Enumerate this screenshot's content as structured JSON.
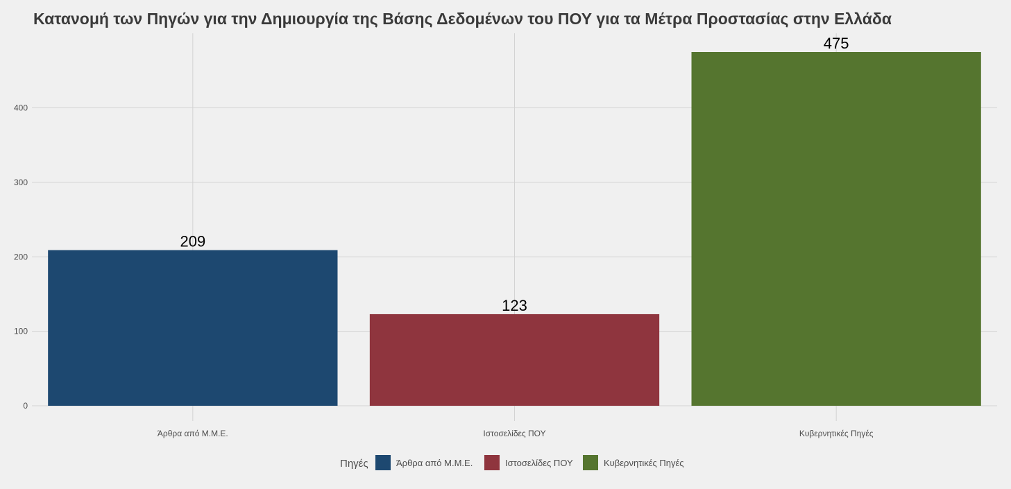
{
  "chart_data": {
    "type": "bar",
    "title": "Κατανομή των Πηγών για την Δημιουργία της Βάσης Δεδομένων του ΠΟΥ για τα Μέτρα Προστασίας στην Ελλάδα",
    "xlabel": "",
    "ylabel": "",
    "categories": [
      "Άρθρα από Μ.Μ.Ε.",
      "Ιστοσελίδες ΠΟΥ",
      "Κυβερνητικές Πηγές"
    ],
    "values": [
      209,
      123,
      475
    ],
    "data_labels": [
      "209",
      "123",
      "475"
    ],
    "colors": [
      "#1d4870",
      "#8f353e",
      "#55752f"
    ],
    "ylim": [
      0,
      475
    ],
    "y_ticks": [
      0,
      100,
      200,
      300,
      400
    ],
    "y_tick_labels": [
      "0",
      "100",
      "200",
      "300",
      "400"
    ],
    "grid": true,
    "legend": {
      "title": "Πηγές",
      "position": "bottom",
      "items": [
        "Άρθρα από Μ.Μ.Ε.",
        "Ιστοσελίδες ΠΟΥ",
        "Κυβερνητικές Πηγές"
      ]
    }
  }
}
